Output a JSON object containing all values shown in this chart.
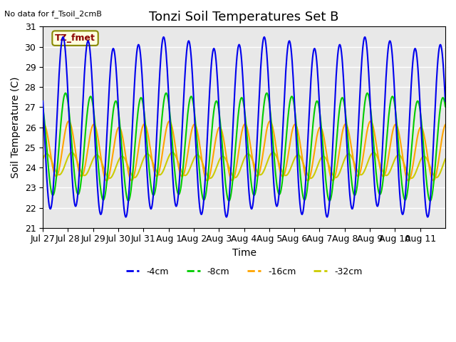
{
  "title": "Tonzi Soil Temperatures Set B",
  "xlabel": "Time",
  "ylabel": "Soil Temperature (C)",
  "no_data_label": "No data for f_Tsoil_2cmB",
  "tz_fmet_label": "TZ_fmet",
  "ylim": [
    21.0,
    31.0
  ],
  "yticks": [
    21.0,
    22.0,
    23.0,
    24.0,
    25.0,
    26.0,
    27.0,
    28.0,
    29.0,
    30.0,
    31.0
  ],
  "xtick_labels": [
    "Jul 27",
    "Jul 28",
    "Jul 29",
    "Jul 30",
    "Jul 31",
    "Aug 1",
    "Aug 2",
    "Aug 3",
    "Aug 4",
    "Aug 5",
    "Aug 6",
    "Aug 7",
    "Aug 8",
    "Aug 9",
    "Aug 10",
    "Aug 11"
  ],
  "series": {
    "-4cm": {
      "color": "#0000EE",
      "linewidth": 1.5
    },
    "-8cm": {
      "color": "#00CC00",
      "linewidth": 1.5
    },
    "-16cm": {
      "color": "#FFA500",
      "linewidth": 1.5
    },
    "-32cm": {
      "color": "#CCCC00",
      "linewidth": 1.5
    }
  },
  "bg_color": "#E8E8E8",
  "grid_color": "#FFFFFF",
  "title_fontsize": 13,
  "axis_fontsize": 10,
  "tick_fontsize": 9,
  "n_days": 16,
  "amp4": 4.2,
  "mean4": 26.0,
  "phase4": 0.55,
  "amp8": 2.5,
  "mean8": 25.0,
  "phase8": 0.65,
  "amp16": 1.35,
  "mean16": 24.8,
  "phase16": 0.78,
  "amp32": 0.55,
  "mean32": 24.1,
  "phase32": 0.9
}
